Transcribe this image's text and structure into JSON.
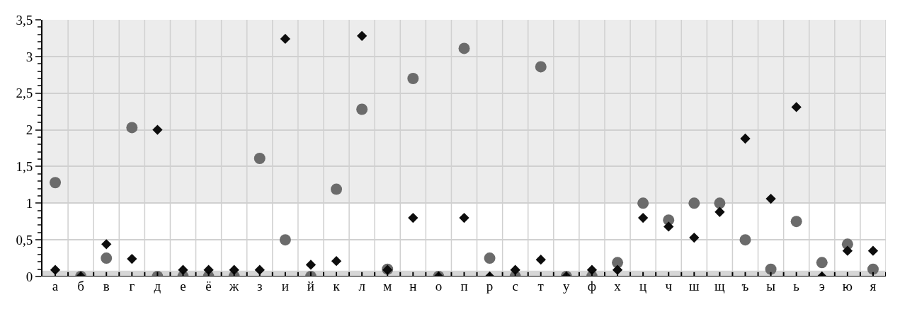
{
  "chart_data": {
    "type": "scatter",
    "categories": [
      "а",
      "б",
      "в",
      "г",
      "д",
      "е",
      "ё",
      "ж",
      "з",
      "и",
      "й",
      "к",
      "л",
      "м",
      "н",
      "о",
      "п",
      "р",
      "с",
      "т",
      "у",
      "ф",
      "х",
      "ц",
      "ч",
      "ш",
      "щ",
      "ъ",
      "ы",
      "ь",
      "э",
      "ю",
      "я"
    ],
    "series": [
      {
        "color": "#6b6b6b",
        "marker": "circle",
        "values": [
          1.28,
          0,
          0.25,
          2.03,
          0,
          0,
          0,
          0,
          1.61,
          0.5,
          0,
          1.19,
          2.28,
          0.1,
          2.7,
          0,
          3.11,
          0.25,
          0,
          2.86,
          0,
          0,
          0.19,
          1.0,
          0.77,
          1.0,
          1.0,
          0.5,
          0.1,
          0.75,
          0.19,
          0.44,
          0.1
        ]
      },
      {
        "color": "#0d0d0d",
        "marker": "diamond",
        "values": [
          0.09,
          0,
          0.44,
          0.24,
          2.0,
          0.09,
          0.09,
          0.09,
          0.09,
          3.24,
          0.16,
          0.21,
          3.28,
          0.09,
          0.8,
          0,
          0.8,
          0,
          0.09,
          0.23,
          0,
          0.09,
          0.09,
          0.8,
          0.68,
          0.53,
          0.88,
          1.88,
          1.06,
          2.31,
          0,
          0.35,
          0.35
        ]
      }
    ],
    "ylim": [
      0,
      3.5
    ],
    "yticks": [
      0,
      {
        "value": 0.5,
        "label": "0,5"
      },
      1,
      {
        "value": 1.5,
        "label": "1,5"
      },
      2,
      {
        "value": 2.5,
        "label": "2,5"
      },
      3,
      {
        "value": 3.5,
        "label": "3,5"
      }
    ],
    "bands": [
      {
        "axis": "y",
        "from": 1,
        "to": 3.5,
        "color": "#ececec"
      },
      {
        "axis": "y",
        "from": 0,
        "to": 0.08,
        "color": "#d6d6d6"
      }
    ],
    "grid": true
  }
}
